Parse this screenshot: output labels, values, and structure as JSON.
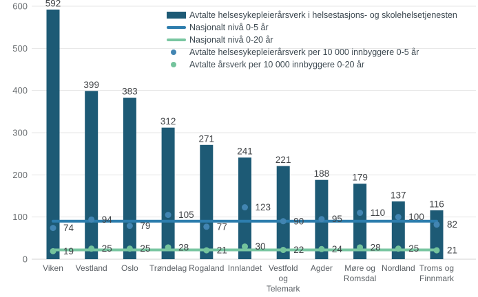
{
  "chart_data": {
    "type": "bar",
    "categories": [
      "Viken",
      "Vestland",
      "Oslo",
      "Trøndelag",
      "Rogaland",
      "Innlandet",
      "Vestfold og Telemark",
      "Agder",
      "Møre og Romsdal",
      "Nordland",
      "Troms og Finnmark"
    ],
    "series": [
      {
        "name": "Avtalte helsesykepleierårsverk i helsestasjons- og skolehelsetjenesten",
        "type": "bar",
        "color": "#1d5a75",
        "values": [
          592,
          399,
          383,
          312,
          271,
          241,
          221,
          188,
          179,
          137,
          116
        ]
      },
      {
        "name": "Nasjonalt nivå 0-5 år",
        "type": "line",
        "color": "#2d7dad",
        "value": 90
      },
      {
        "name": "Nasjonalt nivå 0-20 år",
        "type": "line",
        "color": "#79c6a1",
        "value": 22
      },
      {
        "name": "Avtalte helsesykepleierårsverk per 10 000 innbyggere 0-5 år",
        "type": "scatter",
        "color": "#4285b2",
        "values": [
          74,
          94,
          79,
          105,
          77,
          123,
          90,
          95,
          110,
          100,
          82
        ]
      },
      {
        "name": "Avtalte årsverk per 10 000 innbyggere 0-20 år",
        "type": "scatter",
        "color": "#74c39c",
        "values": [
          19,
          25,
          25,
          28,
          21,
          30,
          22,
          24,
          28,
          25,
          21
        ]
      }
    ],
    "xlabel": "",
    "ylabel": "",
    "ylim": [
      0,
      600
    ],
    "yticks": [
      0,
      100,
      200,
      300,
      400,
      500,
      600
    ],
    "grid": true,
    "legend_position": "top-center",
    "colors": {
      "grid_line": "#e5e5e5",
      "axis_line": "#d2d2d2",
      "axis_text": "#6a6e71",
      "value_text": "#3f4245",
      "category_text": "#5c6166",
      "legend_text": "#3e4a52"
    }
  }
}
